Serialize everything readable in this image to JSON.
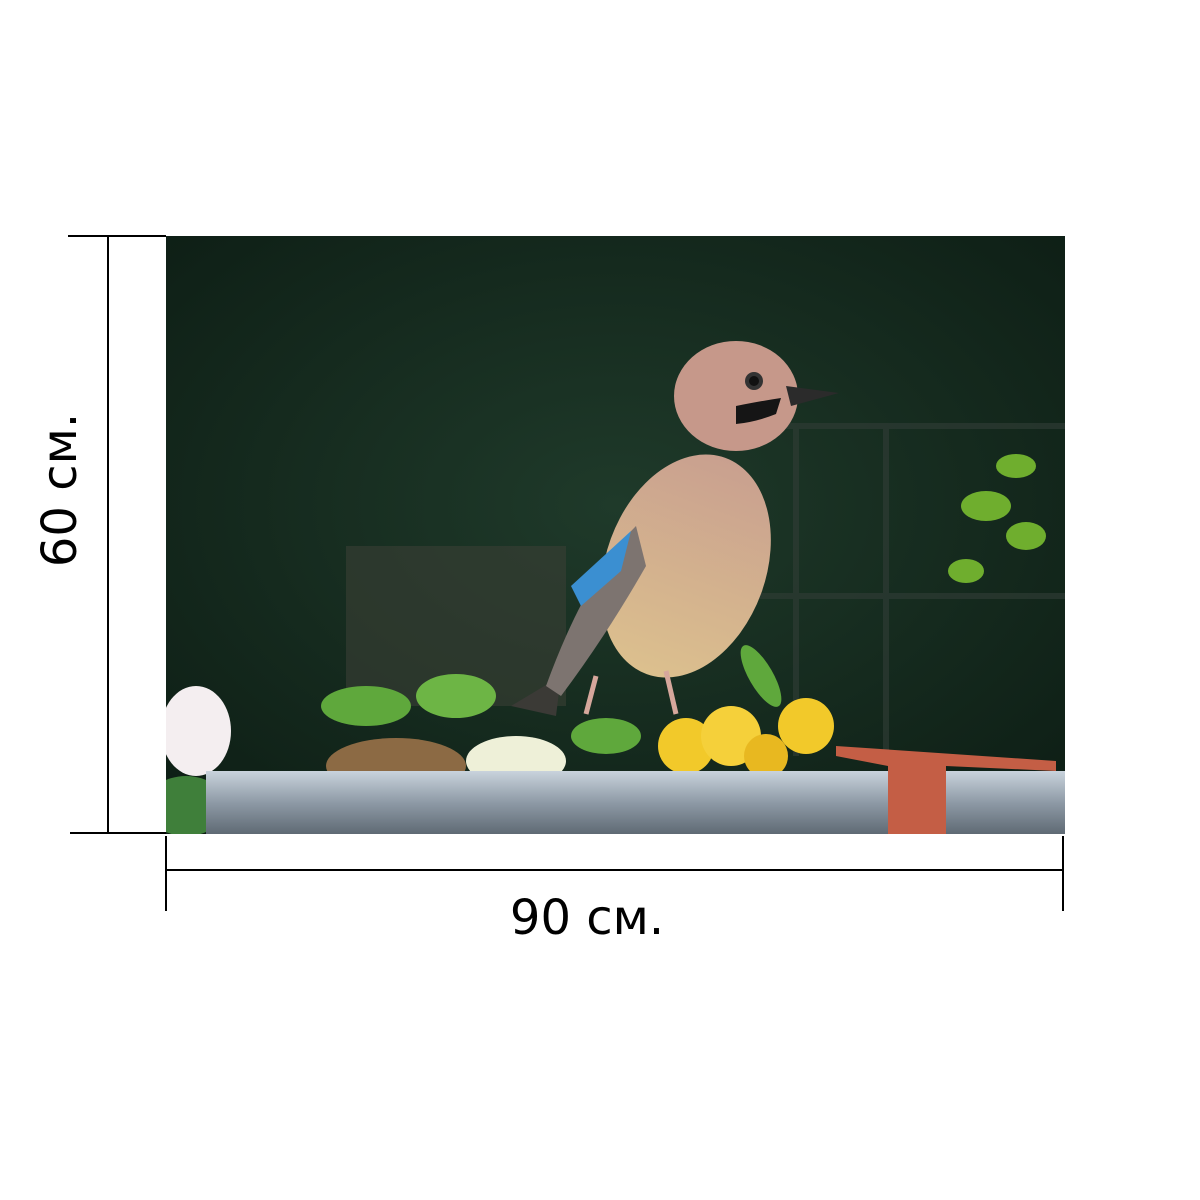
{
  "product": {
    "width_label": "90 см.",
    "height_label": "60 см.",
    "photo_subject": "jay-bird-on-railing"
  },
  "colors": {
    "background": "#ffffff",
    "dimension_lines": "#000000"
  }
}
